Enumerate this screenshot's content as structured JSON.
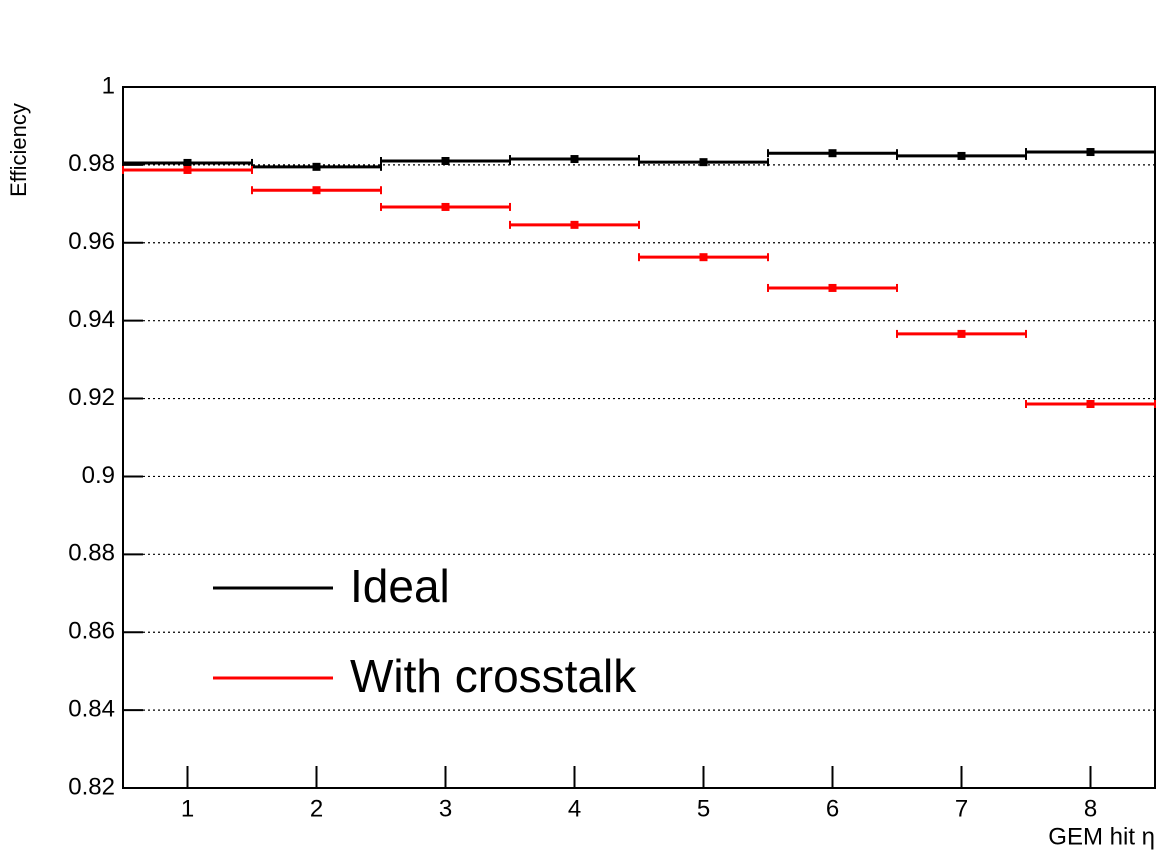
{
  "chart_data": {
    "type": "histogram",
    "x_label": "GEM hit  η",
    "y_label": "Efficiency",
    "bins": [
      0.5,
      1.5,
      2.5,
      3.5,
      4.5,
      5.5,
      6.5,
      7.5,
      8.5
    ],
    "series": [
      {
        "name": "Ideal",
        "color": "#000000",
        "values": [
          0.9805,
          0.9795,
          0.981,
          0.9815,
          0.9807,
          0.983,
          0.9823,
          0.9833
        ],
        "errors": [
          0.0003,
          0.0003,
          0.0003,
          0.0003,
          0.0003,
          0.0003,
          0.0003,
          0.0003
        ]
      },
      {
        "name": "With crosstalk",
        "color": "#ff0000",
        "values": [
          0.9787,
          0.9735,
          0.9692,
          0.9646,
          0.9563,
          0.9484,
          0.9366,
          0.9186
        ],
        "errors": [
          0.0004,
          0.0004,
          0.0004,
          0.0005,
          0.0006,
          0.0007,
          0.0008,
          0.001
        ]
      }
    ],
    "xlim": [
      0.5,
      8.5
    ],
    "xticks": [
      1,
      2,
      3,
      4,
      5,
      6,
      7,
      8
    ],
    "ylim": [
      0.82,
      1
    ],
    "yticks": [
      0.82,
      0.84,
      0.86,
      0.88,
      0.9,
      0.92,
      0.94,
      0.96,
      0.98,
      1
    ],
    "grid": true,
    "legend": "bottom-left"
  }
}
